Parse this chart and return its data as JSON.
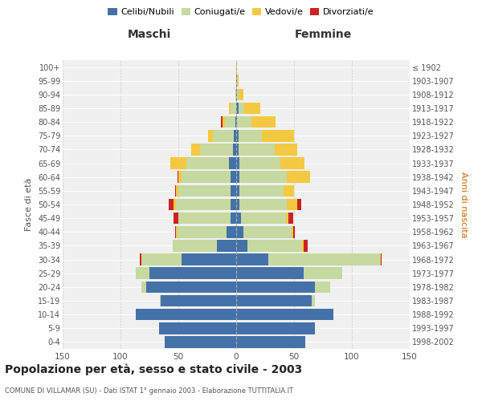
{
  "age_groups": [
    "0-4",
    "5-9",
    "10-14",
    "15-19",
    "20-24",
    "25-29",
    "30-34",
    "35-39",
    "40-44",
    "45-49",
    "50-54",
    "55-59",
    "60-64",
    "65-69",
    "70-74",
    "75-79",
    "80-84",
    "85-89",
    "90-94",
    "95-99",
    "100+"
  ],
  "birth_years": [
    "1998-2002",
    "1993-1997",
    "1988-1992",
    "1983-1987",
    "1978-1982",
    "1973-1977",
    "1968-1972",
    "1963-1967",
    "1958-1962",
    "1953-1957",
    "1948-1952",
    "1943-1947",
    "1938-1942",
    "1933-1937",
    "1928-1932",
    "1923-1927",
    "1918-1922",
    "1913-1917",
    "1908-1912",
    "1903-1907",
    "≤ 1902"
  ],
  "males": {
    "celibe": [
      62,
      67,
      87,
      65,
      78,
      75,
      47,
      17,
      8,
      5,
      5,
      5,
      5,
      6,
      3,
      2,
      1,
      0,
      0,
      0,
      0
    ],
    "coniugato": [
      0,
      0,
      0,
      1,
      4,
      12,
      35,
      38,
      43,
      45,
      47,
      45,
      42,
      37,
      28,
      18,
      9,
      5,
      1,
      0,
      0
    ],
    "vedovo": [
      0,
      0,
      0,
      0,
      0,
      0,
      0,
      0,
      1,
      0,
      2,
      2,
      3,
      14,
      8,
      4,
      2,
      1,
      0,
      0,
      0
    ],
    "divorziato": [
      0,
      0,
      0,
      0,
      0,
      0,
      1,
      0,
      1,
      4,
      4,
      1,
      1,
      0,
      0,
      0,
      1,
      0,
      0,
      0,
      0
    ]
  },
  "females": {
    "nubile": [
      60,
      68,
      84,
      65,
      68,
      58,
      28,
      10,
      6,
      4,
      3,
      3,
      3,
      3,
      2,
      2,
      1,
      2,
      1,
      1,
      0
    ],
    "coniugata": [
      0,
      0,
      0,
      3,
      13,
      34,
      96,
      47,
      42,
      39,
      41,
      38,
      41,
      35,
      31,
      20,
      12,
      5,
      1,
      0,
      0
    ],
    "vedova": [
      0,
      0,
      0,
      0,
      0,
      0,
      1,
      1,
      1,
      2,
      9,
      9,
      20,
      21,
      20,
      28,
      21,
      14,
      4,
      1,
      1
    ],
    "divorziata": [
      0,
      0,
      0,
      0,
      0,
      0,
      1,
      4,
      2,
      4,
      3,
      0,
      0,
      0,
      0,
      0,
      0,
      0,
      0,
      0,
      0
    ]
  },
  "color_celibe": "#4472a8",
  "color_coniugato": "#c5d9a0",
  "color_vedovo": "#f5c842",
  "color_divorziato": "#cc2222",
  "xlim": 150,
  "title": "Popolazione per età, sesso e stato civile - 2003",
  "subtitle": "COMUNE DI VILLAMAR (SU) - Dati ISTAT 1° gennaio 2003 - Elaborazione TUTTITALIA.IT",
  "xlabel_left": "Maschi",
  "xlabel_right": "Femmine",
  "ylabel_left": "Fasce di età",
  "ylabel_right": "Anni di nascita",
  "legend_labels": [
    "Celibi/Nubili",
    "Coniugati/e",
    "Vedovi/e",
    "Divorziati/e"
  ],
  "bg_color": "#ffffff",
  "plot_bg_color": "#f0f0f0"
}
